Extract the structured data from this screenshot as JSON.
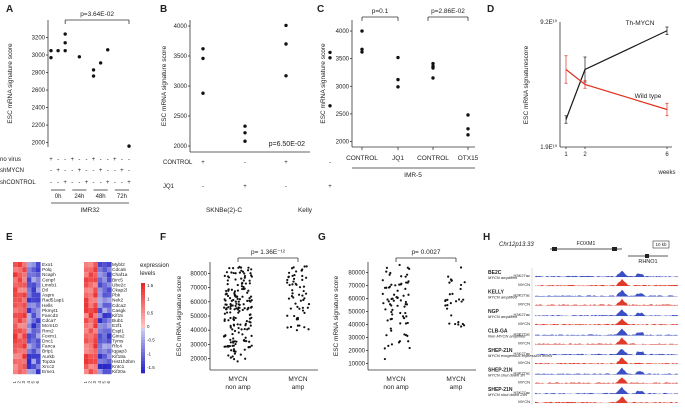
{
  "panels": [
    "A",
    "B",
    "C",
    "D",
    "E",
    "F",
    "G",
    "H"
  ],
  "chart_data": [
    {
      "panel": "A",
      "type": "scatter",
      "ylabel": "ESC mRNA signature score",
      "ylim": [
        1950,
        3400
      ],
      "yticks": [
        2000,
        2200,
        2400,
        2600,
        2800,
        3000,
        3200
      ],
      "pvalue": "p=3.64E-02",
      "row_labels": [
        "no virus",
        "shMYCN",
        "shCONTROL"
      ],
      "row_signs": [
        [
          "+",
          "-",
          "-",
          "+",
          "-",
          "-",
          "+",
          "-",
          "-",
          "+",
          "-",
          "-"
        ],
        [
          "-",
          "+",
          "-",
          "-",
          "+",
          "-",
          "-",
          "+",
          "-",
          "-",
          "+",
          "-"
        ],
        [
          "-",
          "-",
          "+",
          "-",
          "-",
          "+",
          "-",
          "-",
          "+",
          "-",
          "-",
          "+"
        ]
      ],
      "group_labels": [
        "0h",
        "24h",
        "48h",
        "72h"
      ],
      "cell_line": "IMR32",
      "points": [
        [
          1,
          3050
        ],
        [
          1,
          2970
        ],
        [
          2,
          3050
        ],
        [
          3,
          3050
        ],
        [
          3,
          3240
        ],
        [
          3,
          3140
        ],
        [
          5,
          2980
        ],
        [
          7,
          2830
        ],
        [
          7,
          2760
        ],
        [
          8,
          2910
        ],
        [
          9,
          3060
        ],
        [
          12,
          1960
        ]
      ]
    },
    {
      "panel": "B",
      "type": "scatter",
      "ylabel": "ESC mRNA signature score",
      "ylim": [
        1900,
        4100
      ],
      "yticks": [
        2000,
        2500,
        3000,
        3500,
        4000
      ],
      "pvalue": "p=6.50E-02",
      "row_labels": [
        "CONTROL",
        "JQ1"
      ],
      "row_signs": [
        [
          "+",
          "-",
          "+",
          "-"
        ],
        [
          "-",
          "+",
          "-",
          "+"
        ]
      ],
      "group_labels": [
        "SKNBe(2)-C",
        "Kelly"
      ],
      "points": [
        [
          1,
          3620
        ],
        [
          1,
          3460
        ],
        [
          1,
          2880
        ],
        [
          2,
          2330
        ],
        [
          2,
          2220
        ],
        [
          2,
          2080
        ],
        [
          3,
          4010
        ],
        [
          3,
          3700
        ],
        [
          3,
          3170
        ],
        [
          4,
          3560
        ],
        [
          4,
          3470
        ],
        [
          4,
          2670
        ]
      ]
    },
    {
      "panel": "C",
      "type": "scatter",
      "ylabel": "ESC mRNA signature score",
      "ylim": [
        1900,
        4200
      ],
      "yticks": [
        2000,
        2500,
        3000,
        3500,
        4000
      ],
      "pvalues": [
        "p=0.1",
        "p=2.86E-02"
      ],
      "categories": [
        "CONTROL",
        "JQ1",
        "CONTROL",
        "OTX15"
      ],
      "cell_line": "IMR-5",
      "points": [
        [
          1,
          3670
        ],
        [
          1,
          3620
        ],
        [
          1,
          4000
        ],
        [
          2,
          3520
        ],
        [
          2,
          3120
        ],
        [
          2,
          2990
        ],
        [
          3,
          3410
        ],
        [
          3,
          3360
        ],
        [
          3,
          3330
        ],
        [
          3,
          3150
        ],
        [
          4,
          2480
        ],
        [
          4,
          2230
        ],
        [
          4,
          2120
        ]
      ]
    },
    {
      "panel": "D",
      "type": "line",
      "ylabel": "ESC mRNA signaturescore",
      "xlabel": "weeks",
      "ytick_top": "9.2E¹⁰",
      "ytick_bottom": "1.9E¹⁰",
      "x": [
        1,
        2,
        6
      ],
      "xticks": [
        "1",
        "2",
        "6"
      ],
      "series": [
        {
          "name": "Th-MYCN",
          "color": "#1a1a1a",
          "values": [
            0.22,
            0.62,
            0.93
          ],
          "err": [
            0.03,
            0.1,
            0.03
          ]
        },
        {
          "name": "Wild type",
          "color": "#e0301e",
          "values": [
            0.62,
            0.5,
            0.3
          ],
          "err": [
            0.11,
            0.03,
            0.05
          ]
        }
      ]
    },
    {
      "panel": "E",
      "type": "heatmap",
      "legend_title": "expression levels",
      "legend_ticks": [
        "1.5",
        "1",
        "0.5",
        "0",
        "-0.5",
        "-1",
        "-1.5"
      ],
      "genes_left": [
        "Exo1",
        "Polq",
        "Ncaph",
        "Cenpf",
        "Lmnb1",
        "Dtl",
        "Aspm",
        "Rad51ap1",
        "Hells",
        "Pkmyt1",
        "Fancd2",
        "Cdca7",
        "Mcm10",
        "Rrm2",
        "Foxm1",
        "Dnc1",
        "Fanca",
        "Brip1",
        "Aurkb",
        "Top2a",
        "Xrcc2",
        "Eme1"
      ],
      "genes_right": [
        "Mybl2",
        "Cdca5",
        "Chaf1a",
        "Birc5",
        "Ube2c",
        "Ckap2l",
        "Pbk",
        "Nek2",
        "Cdca2",
        "Casgk",
        "Kif15",
        "Bub1",
        "E2f1",
        "Espl1",
        "Gins2",
        "Tyms",
        "Rfc4",
        "Iqgap3",
        "Kif18a",
        "Hist1h2bm",
        "Kntc1",
        "Kif20a"
      ],
      "columns": [
        "1",
        "2",
        "3",
        "4",
        "5",
        "6"
      ]
    },
    {
      "panel": "F",
      "type": "scatter",
      "ylabel": "ESC mRNA signature score",
      "ylim": [
        12000,
        88000
      ],
      "yticks": [
        "20000",
        "30000",
        "40000",
        "50000",
        "60000",
        "70000",
        "80000"
      ],
      "pvalue": "p= 1.36E⁻¹²",
      "categories": [
        "MYCN non amp",
        "MYCN amp"
      ]
    },
    {
      "panel": "G",
      "type": "scatter",
      "ylabel": "ESC mRNA signature score",
      "ylim": [
        5000,
        88000
      ],
      "yticks": [
        "10000",
        "20000",
        "30000",
        "40000",
        "50000",
        "60000",
        "70000",
        "80000"
      ],
      "pvalue": "p= 0.0027",
      "categories": [
        "MYCN non amp",
        "MYCN amp"
      ]
    },
    {
      "panel": "H",
      "type": "table",
      "locus": "Chr12p13.33",
      "genes": [
        "FOXM1",
        "RHNO1"
      ],
      "scale": "10 kb",
      "samples": [
        {
          "name": "BE2C",
          "note": "MYCN amplified"
        },
        {
          "name": "KELLY",
          "note": "MYCN amplified"
        },
        {
          "name": "NGP",
          "note": "MYCN amplified"
        },
        {
          "name": "CLB-GA",
          "note": "Non MYCN amplified"
        },
        {
          "name": "SHEP-21N",
          "note": "MYCN exogenous expression levels"
        },
        {
          "name": "SHEP-21N",
          "note": "MYCN shut down 3h"
        },
        {
          "name": "SHEP-21N",
          "note": "MYCN shut down 24h"
        }
      ],
      "track_labels": [
        "H3K27ac",
        "MYCN"
      ]
    }
  ]
}
